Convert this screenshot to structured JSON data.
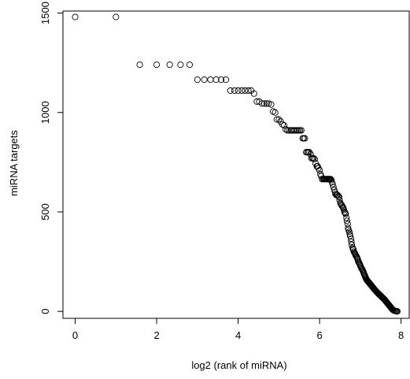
{
  "chart_data": {
    "type": "scatter",
    "title": "",
    "xlabel": "log2 (rank of miRNA)",
    "ylabel": "miRNA targets",
    "xlim": [
      -0.3,
      8.2
    ],
    "ylim": [
      -35,
      1510
    ],
    "xticks": [
      0,
      2,
      4,
      6,
      8
    ],
    "yticks": [
      0,
      500,
      1000,
      1500
    ],
    "marker": "open-circle",
    "grid": false,
    "legend": "none",
    "series": [
      {
        "points": [
          [
            0,
            1480
          ],
          [
            1,
            1480
          ],
          [
            1.585,
            1240
          ],
          [
            2,
            1240
          ],
          [
            2.32,
            1240
          ],
          [
            2.585,
            1240
          ],
          [
            2.81,
            1240
          ],
          [
            3,
            1165
          ],
          [
            3.17,
            1165
          ],
          [
            3.32,
            1165
          ],
          [
            3.46,
            1165
          ],
          [
            3.585,
            1165
          ],
          [
            3.7,
            1165
          ],
          [
            3.81,
            1110
          ],
          [
            3.91,
            1110
          ],
          [
            4.0,
            1110
          ],
          [
            4.09,
            1110
          ],
          [
            4.17,
            1110
          ],
          [
            4.25,
            1110
          ],
          [
            4.32,
            1110
          ],
          [
            4.39,
            1095
          ],
          [
            4.46,
            1055
          ],
          [
            4.52,
            1055
          ],
          [
            4.585,
            1045
          ],
          [
            4.64,
            1045
          ],
          [
            4.7,
            1045
          ],
          [
            4.75,
            1045
          ],
          [
            4.81,
            1040
          ],
          [
            4.86,
            1005
          ],
          [
            4.91,
            1000
          ],
          [
            4.95,
            965
          ],
          [
            5.0,
            965
          ],
          [
            5.04,
            955
          ],
          [
            5.09,
            940
          ],
          [
            5.13,
            935
          ],
          [
            5.17,
            915
          ],
          [
            5.21,
            910
          ],
          [
            5.25,
            910
          ],
          [
            5.29,
            910
          ],
          [
            5.32,
            910
          ],
          [
            5.36,
            910
          ],
          [
            5.39,
            910
          ],
          [
            5.43,
            910
          ],
          [
            5.46,
            910
          ],
          [
            5.49,
            910
          ],
          [
            5.52,
            910
          ],
          [
            5.55,
            910
          ],
          [
            5.585,
            870
          ],
          [
            5.61,
            870
          ],
          [
            5.64,
            870
          ],
          [
            5.67,
            800
          ],
          [
            5.7,
            800
          ],
          [
            5.72,
            800
          ],
          [
            5.75,
            800
          ],
          [
            5.78,
            790
          ],
          [
            5.8,
            770
          ],
          [
            5.83,
            770
          ],
          [
            5.85,
            770
          ],
          [
            5.88,
            765
          ],
          [
            5.9,
            745
          ],
          [
            5.93,
            730
          ],
          [
            5.95,
            730
          ],
          [
            5.97,
            720
          ],
          [
            6.0,
            710
          ],
          [
            6.02,
            690
          ],
          [
            6.04,
            680
          ],
          [
            6.06,
            665
          ],
          [
            6.09,
            665
          ],
          [
            6.11,
            665
          ],
          [
            6.13,
            665
          ],
          [
            6.15,
            665
          ],
          [
            6.17,
            665
          ],
          [
            6.19,
            665
          ],
          [
            6.21,
            665
          ],
          [
            6.23,
            665
          ],
          [
            6.25,
            665
          ],
          [
            6.27,
            665
          ],
          [
            6.29,
            660
          ],
          [
            6.3,
            650
          ],
          [
            6.32,
            640
          ],
          [
            6.34,
            625
          ],
          [
            6.36,
            610
          ],
          [
            6.38,
            600
          ],
          [
            6.39,
            590
          ],
          [
            6.41,
            585
          ],
          [
            6.43,
            585
          ],
          [
            6.44,
            585
          ],
          [
            6.46,
            580
          ],
          [
            6.48,
            575
          ],
          [
            6.49,
            560
          ],
          [
            6.51,
            545
          ],
          [
            6.52,
            540
          ],
          [
            6.54,
            535
          ],
          [
            6.55,
            530
          ],
          [
            6.57,
            525
          ],
          [
            6.58,
            520
          ],
          [
            6.6,
            510
          ],
          [
            6.61,
            500
          ],
          [
            6.63,
            495
          ],
          [
            6.64,
            490
          ],
          [
            6.66,
            470
          ],
          [
            6.67,
            455
          ],
          [
            6.69,
            440
          ],
          [
            6.7,
            420
          ],
          [
            6.71,
            410
          ],
          [
            6.73,
            400
          ],
          [
            6.74,
            390
          ],
          [
            6.75,
            380
          ],
          [
            6.77,
            365
          ],
          [
            6.78,
            350
          ],
          [
            6.79,
            335
          ],
          [
            6.81,
            320
          ],
          [
            6.82,
            315
          ],
          [
            6.83,
            310
          ],
          [
            6.84,
            300
          ],
          [
            6.86,
            295
          ],
          [
            6.87,
            290
          ],
          [
            6.88,
            285
          ],
          [
            6.89,
            280
          ],
          [
            6.91,
            275
          ],
          [
            6.92,
            270
          ],
          [
            6.93,
            265
          ],
          [
            6.94,
            260
          ],
          [
            6.95,
            250
          ],
          [
            6.97,
            245
          ],
          [
            6.98,
            240
          ],
          [
            6.99,
            235
          ],
          [
            7.0,
            230
          ],
          [
            7.01,
            225
          ],
          [
            7.02,
            220
          ],
          [
            7.03,
            215
          ],
          [
            7.05,
            210
          ],
          [
            7.06,
            205
          ],
          [
            7.07,
            200
          ],
          [
            7.08,
            195
          ],
          [
            7.09,
            190
          ],
          [
            7.1,
            185
          ],
          [
            7.11,
            180
          ],
          [
            7.12,
            175
          ],
          [
            7.13,
            170
          ],
          [
            7.14,
            165
          ],
          [
            7.15,
            160
          ],
          [
            7.16,
            158
          ],
          [
            7.17,
            155
          ],
          [
            7.18,
            152
          ],
          [
            7.19,
            150
          ],
          [
            7.2,
            148
          ],
          [
            7.21,
            145
          ],
          [
            7.22,
            143
          ],
          [
            7.23,
            140
          ],
          [
            7.24,
            138
          ],
          [
            7.25,
            135
          ],
          [
            7.26,
            133
          ],
          [
            7.27,
            130
          ],
          [
            7.28,
            128
          ],
          [
            7.29,
            125
          ],
          [
            7.3,
            123
          ],
          [
            7.31,
            120
          ],
          [
            7.32,
            117
          ],
          [
            7.33,
            115
          ],
          [
            7.34,
            112
          ],
          [
            7.35,
            110
          ],
          [
            7.36,
            108
          ],
          [
            7.37,
            105
          ],
          [
            7.38,
            103
          ],
          [
            7.39,
            100
          ],
          [
            7.4,
            98
          ],
          [
            7.41,
            96
          ],
          [
            7.42,
            94
          ],
          [
            7.43,
            92
          ],
          [
            7.44,
            90
          ],
          [
            7.45,
            88
          ],
          [
            7.46,
            86
          ],
          [
            7.47,
            84
          ],
          [
            7.48,
            82
          ],
          [
            7.49,
            80
          ],
          [
            7.5,
            78
          ],
          [
            7.51,
            76
          ],
          [
            7.52,
            74
          ],
          [
            7.53,
            72
          ],
          [
            7.54,
            70
          ],
          [
            7.55,
            68
          ],
          [
            7.56,
            66
          ],
          [
            7.57,
            64
          ],
          [
            7.58,
            62
          ],
          [
            7.59,
            60
          ],
          [
            7.6,
            58
          ],
          [
            7.61,
            55
          ],
          [
            7.62,
            52
          ],
          [
            7.63,
            50
          ],
          [
            7.64,
            48
          ],
          [
            7.65,
            45
          ],
          [
            7.66,
            42
          ],
          [
            7.67,
            40
          ],
          [
            7.68,
            38
          ],
          [
            7.69,
            35
          ],
          [
            7.7,
            32
          ],
          [
            7.71,
            30
          ],
          [
            7.72,
            28
          ],
          [
            7.73,
            25
          ],
          [
            7.74,
            22
          ],
          [
            7.75,
            20
          ],
          [
            7.76,
            17
          ],
          [
            7.77,
            15
          ],
          [
            7.78,
            12
          ],
          [
            7.79,
            10
          ],
          [
            7.8,
            7
          ],
          [
            7.82,
            5
          ],
          [
            7.84,
            3
          ],
          [
            7.86,
            2
          ],
          [
            7.88,
            1
          ],
          [
            7.9,
            0
          ],
          [
            7.91,
            0
          ]
        ]
      }
    ]
  }
}
